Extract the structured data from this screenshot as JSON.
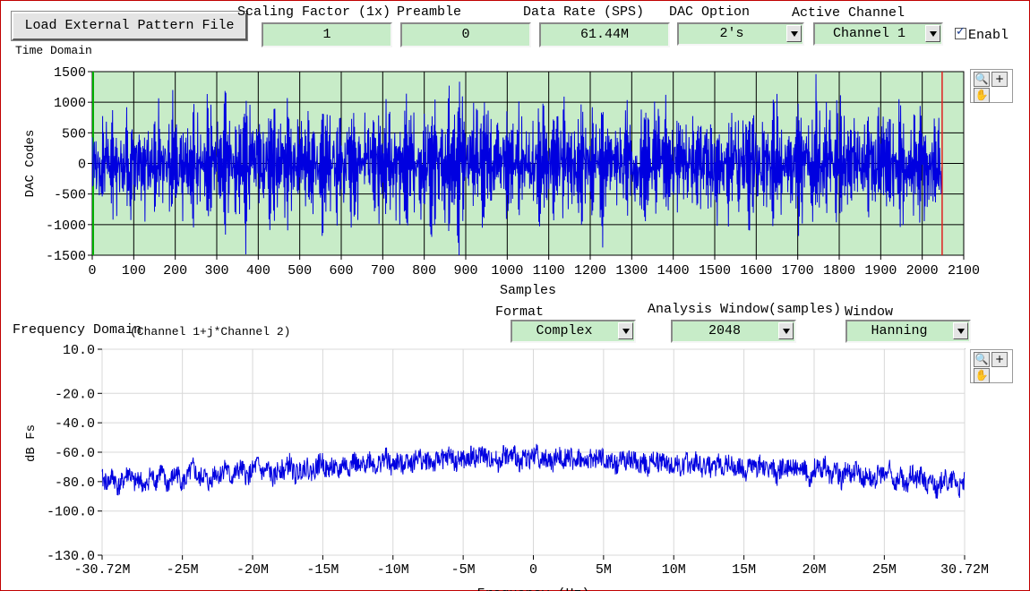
{
  "toolbar": {
    "load_button_label": "Load External Pattern File",
    "scaling_label": "Scaling Factor (1x)",
    "scaling_value": "1",
    "preamble_label": "Preamble",
    "preamble_value": "0",
    "data_rate_label": "Data Rate (SPS)",
    "data_rate_value": "61.44M",
    "dac_option_label": "DAC Option",
    "dac_option_value": "2's",
    "active_channel_label": "Active Channel",
    "active_channel_value": "Channel 1",
    "enable_label": "Enabl",
    "enable_checked": true
  },
  "time_domain": {
    "title": "Time Domain",
    "palette_icons": [
      "zoom-icon",
      "crosshair-icon",
      "pan-hand-icon"
    ]
  },
  "freq_controls": {
    "title": "Frequency Domain",
    "subtitle": "(Channel 1+j*Channel 2)",
    "format_label": "Format",
    "format_value": "Complex",
    "analysis_window_label": "Analysis Window(samples)",
    "analysis_window_value": "2048",
    "window_label": "Window",
    "window_value": "Hanning"
  },
  "colors": {
    "plot_green": "#c8ecc8",
    "trace_blue": "#0000e0",
    "cursor_red": "#e02020",
    "grid_dark": "#000000"
  },
  "chart_data": [
    {
      "type": "line",
      "title": "",
      "xlabel": "Samples",
      "ylabel": "DAC Codes",
      "xlim": [
        0,
        2100
      ],
      "ylim": [
        -1500,
        1500
      ],
      "x_ticks": [
        "0",
        "100",
        "200",
        "300",
        "400",
        "500",
        "600",
        "700",
        "800",
        "900",
        "1000",
        "1100",
        "1200",
        "1300",
        "1400",
        "1500",
        "1600",
        "1700",
        "1800",
        "1900",
        "2000",
        "2100"
      ],
      "y_ticks": [
        "1500",
        "1000",
        "500",
        "0",
        "-500",
        "-1000",
        "-1500"
      ],
      "grid": true,
      "cursor_x": 2048,
      "series": [
        {
          "points": 2048,
          "values": [
            100,
            -220,
            410,
            -630,
            280,
            -150,
            -720,
            560,
            -390,
            310,
            -860,
            670,
            -240,
            120,
            -540,
            880,
            -460,
            230,
            -980,
            720,
            -320,
            180,
            -610,
            1010,
            -540,
            290,
            -710,
            470,
            -120,
            -880,
            650,
            -410,
            560,
            -1060,
            830,
            -290,
            410,
            -650,
            1190,
            -720,
            260,
            -540,
            860,
            -310,
            -1180,
            940,
            -480,
            390,
            -760,
            620,
            -230,
            -970,
            810,
            -520,
            340,
            -680,
            1080,
            -610,
            220,
            -840,
            560,
            -390,
            1160,
            -920,
            470,
            -290,
            -1290,
            870,
            -540,
            310,
            -720,
            980,
            -460,
            240,
            -870,
            1020,
            -660,
            380,
            -580,
            490,
            -210,
            -910,
            730,
            -450,
            1030,
            -780,
            310,
            -620,
            890,
            -340,
            -1060,
            910,
            -520,
            270,
            -700,
            640,
            -280,
            -990,
            840,
            -570,
            360,
            -760,
            1120,
            -640,
            -410,
            -1200,
            950,
            -380,
            540,
            -880,
            710,
            -290,
            -1040,
            830,
            -460,
            330,
            -690,
            570,
            -240,
            -910,
            780,
            -510,
            880,
            -760,
            310,
            -560,
            640,
            -330,
            -850,
            720,
            -460,
            240,
            -600,
            510,
            -210,
            -820,
            690,
            -430,
            330,
            -650,
            960,
            -570,
            280,
            -810,
            530,
            -360,
            -1010,
            860,
            -490,
            300,
            -720,
            610,
            -250,
            -950,
            820,
            -540,
            380,
            -700,
            1060,
            -620,
            240,
            -880,
            590,
            -410,
            1110,
            -860,
            420,
            -310,
            -790,
            640,
            -450,
            220,
            -660,
            780,
            -380,
            290,
            -710,
            520,
            -180,
            -840,
            650,
            -420,
            860,
            -730,
            300,
            -540,
            630,
            -320,
            -900,
            710,
            -480,
            250,
            -650,
            540,
            -230,
            -870,
            980,
            -560,
            340,
            -720,
            600,
            -290,
            -1010,
            870,
            -530,
            330,
            -690,
            1150,
            -640,
            250,
            -830,
            560,
            -370,
            1090,
            -950,
            500,
            -300,
            -760,
            620,
            -440,
            230,
            -680,
            830,
            -420,
            310,
            -740,
            560,
            -200,
            -880,
            700,
            -470,
            1010,
            -810,
            330,
            -600,
            690,
            -350,
            -960,
            760,
            -500,
            260,
            -700,
            590,
            -240
          ],
          "color": "#0000e0"
        }
      ]
    },
    {
      "type": "line",
      "title": "",
      "xlabel": "Frequency (Hz)",
      "ylabel": "dB Fs",
      "xlim": [
        -30.72,
        30.72
      ],
      "ylim": [
        -130,
        10
      ],
      "x_ticks": [
        "-30.72M",
        "-25M",
        "-20M",
        "-15M",
        "-10M",
        "-5M",
        "0",
        "5M",
        "10M",
        "15M",
        "20M",
        "25M",
        "30.72M"
      ],
      "y_ticks": [
        "10.0",
        "-20.0",
        "-40.0",
        "-60.0",
        "-80.0",
        "-100.0",
        "-130.0"
      ],
      "grid": true,
      "series": [
        {
          "points": 2048,
          "values": [
            -78,
            -81,
            -76,
            -84,
            -79,
            -73,
            -82,
            -77,
            -86,
            -75,
            -80,
            -72,
            -83,
            -78,
            -74,
            -81,
            -77,
            -70,
            -79,
            -75,
            -82,
            -73,
            -76,
            -69,
            -78,
            -74,
            -71,
            -77,
            -73,
            -68,
            -75,
            -71,
            -79,
            -70,
            -73,
            -67,
            -76,
            -72,
            -69,
            -74,
            -70,
            -66,
            -73,
            -69,
            -75,
            -67,
            -71,
            -65,
            -72,
            -68,
            -64,
            -70,
            -67,
            -63,
            -71,
            -66,
            -69,
            -64,
            -68,
            -62,
            -67,
            -65,
            -69,
            -63,
            -66,
            -61,
            -68,
            -64,
            -67,
            -62,
            -65,
            -60,
            -66,
            -63,
            -68,
            -61,
            -64,
            -62,
            -67,
            -63,
            -65,
            -60,
            -66,
            -64,
            -68,
            -62,
            -65,
            -61,
            -67,
            -63,
            -69,
            -64,
            -66,
            -62,
            -68,
            -65,
            -70,
            -63,
            -67,
            -64,
            -69,
            -66,
            -71,
            -64,
            -68,
            -65,
            -70,
            -67,
            -72,
            -66,
            -69,
            -65,
            -71,
            -68,
            -73,
            -67,
            -70,
            -66,
            -72,
            -69,
            -74,
            -68,
            -71,
            -67,
            -73,
            -70,
            -76,
            -69,
            -72,
            -68,
            -75,
            -71,
            -78,
            -70,
            -73,
            -69,
            -77,
            -72,
            -80,
            -71,
            -75,
            -70,
            -79,
            -74,
            -83,
            -73,
            -77,
            -72,
            -81,
            -76,
            -86,
            -74,
            -79,
            -75,
            -84,
            -78,
            -88,
            -76,
            -82,
            -77,
            -85,
            -80
          ]
        }
      ]
    }
  ]
}
